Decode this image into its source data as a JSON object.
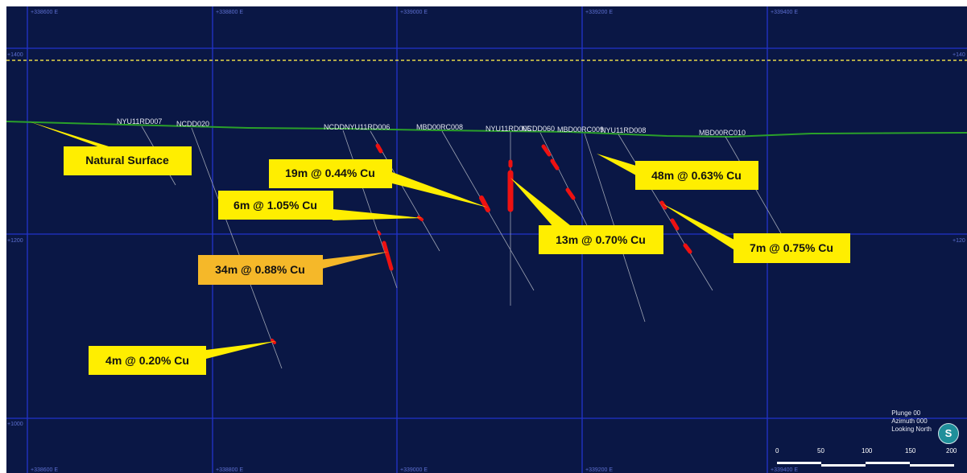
{
  "grid": {
    "eastings": [
      "+338600 E",
      "+338800 E",
      "+339000 E",
      "+339200 E",
      "+339400 E"
    ],
    "rl_top": "+1400",
    "rl_mid": "+1200",
    "rl_bottom": "+1000",
    "rl_top_right": "+140",
    "rl_mid_right": "+120"
  },
  "holes": [
    "NYU11RD007",
    "NCDD020",
    "NCDD021",
    "NYU11RD006",
    "MBD00RC008",
    "NYU11RD005",
    "NCDD060",
    "MBD00RC009",
    "NYU11RD008",
    "MBD00RC010"
  ],
  "hole_labels_visible": {
    "nyu11rd007": "NYU11RD007",
    "ncdd020": "NCDD020",
    "ncdd021_overlap": "NCDDNYU11RD006",
    "mbd00rc008": "MBD00RC008",
    "nyu11rd005_overlap": "NYU11RD005",
    "ncdd060_overlap": "NCDD060",
    "mbd00rc009": "MBD00RC009",
    "nyu11rd008": "NYU11RD008",
    "mbd00rc010": "MBD00RC010"
  },
  "callouts": {
    "surface": "Natural Surface",
    "c1": "19m @ 0.44% Cu",
    "c2": "6m @ 1.05% Cu",
    "c3": "34m @ 0.88% Cu",
    "c4": "4m @ 0.20% Cu",
    "c5": "13m @ 0.70% Cu",
    "c6": "48m @ 0.63% Cu",
    "c7": "7m @ 0.75% Cu"
  },
  "view": {
    "plunge": "Plunge 00",
    "azimuth": "Azimuth 000",
    "looking": "Looking North",
    "compass_letter": "S"
  },
  "scale": {
    "ticks": [
      "0",
      "50",
      "100",
      "150",
      "200"
    ]
  },
  "colors": {
    "background": "#0a1745",
    "grid": "#2233cc",
    "surface": "#2aa02a",
    "dashed_line": "#e8d84a",
    "callout": "#ffee00",
    "callout_highlight": "#f5b829",
    "intercept": "#ee1111"
  }
}
